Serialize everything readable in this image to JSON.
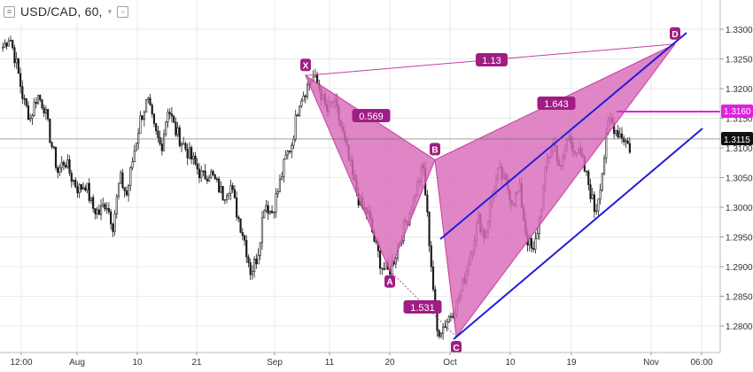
{
  "header": {
    "title": "USD/CAD, 60,",
    "dropdown_icon": "chevron-down-icon",
    "menu_icon": "hamburger-icon",
    "settings_icon": "square-settings-icon"
  },
  "colors": {
    "candles": "#1a1a1a",
    "pattern_fill": "#d96ab9",
    "pattern_stroke": "#c2409e",
    "label_bg": "#a01e83",
    "channel": "#1f1fd6",
    "level": "#e020e0",
    "grid": "#e9e9e9",
    "price_line": "#666666"
  },
  "chart_data": {
    "type": "candlestick",
    "symbol": "USD/CAD",
    "timeframe": "60",
    "ylim": [
      1.2765,
      1.3335
    ],
    "y_ticks": [
      "1.3300",
      "1.3250",
      "1.3200",
      "1.3150",
      "1.3100",
      "1.3050",
      "1.3000",
      "1.2950",
      "1.2900",
      "1.2850",
      "1.2800"
    ],
    "x_ticks": [
      "12:00",
      "Aug",
      "10",
      "21",
      "Sep",
      "11",
      "20",
      "Oct",
      "10",
      "19",
      "Nov",
      "06:00"
    ],
    "current_price": "1.3115",
    "level_price": "1.3160",
    "price_path": [
      1.327,
      1.329,
      1.324,
      1.318,
      1.315,
      1.319,
      1.317,
      1.311,
      1.306,
      1.308,
      1.305,
      1.303,
      1.304,
      1.3,
      1.299,
      1.301,
      1.297,
      1.305,
      1.302,
      1.309,
      1.315,
      1.318,
      1.313,
      1.31,
      1.317,
      1.313,
      1.311,
      1.309,
      1.307,
      1.305,
      1.306,
      1.304,
      1.302,
      1.304,
      1.299,
      1.295,
      1.289,
      1.292,
      1.301,
      1.299,
      1.303,
      1.308,
      1.311,
      1.318,
      1.32,
      1.322,
      1.32,
      1.316,
      1.318,
      1.314,
      1.309,
      1.304,
      1.3,
      1.299,
      1.294,
      1.29,
      1.289,
      1.292,
      1.296,
      1.299,
      1.303,
      1.307,
      1.293,
      1.279,
      1.28,
      1.282,
      1.284,
      1.288,
      1.293,
      1.298,
      1.295,
      1.302,
      1.306,
      1.304,
      1.301,
      1.303,
      1.295,
      1.292,
      1.299,
      1.308,
      1.311,
      1.306,
      1.312,
      1.31,
      1.308,
      1.304,
      1.299,
      1.306,
      1.315,
      1.313,
      1.312,
      1.31
    ],
    "harmonic_points": [
      {
        "label": "X",
        "x": "Sep 6",
        "price": 1.3222
      },
      {
        "label": "A",
        "x": "Sep 20",
        "price": 1.2893
      },
      {
        "label": "B",
        "x": "Sep 28",
        "price": 1.308
      },
      {
        "label": "C",
        "x": "Oct 1",
        "price": 1.2782
      },
      {
        "label": "D",
        "x": "Nov 3",
        "price": 1.3275
      }
    ],
    "ratios": [
      "0.569",
      "1.531",
      "1.643",
      "1.13"
    ]
  }
}
